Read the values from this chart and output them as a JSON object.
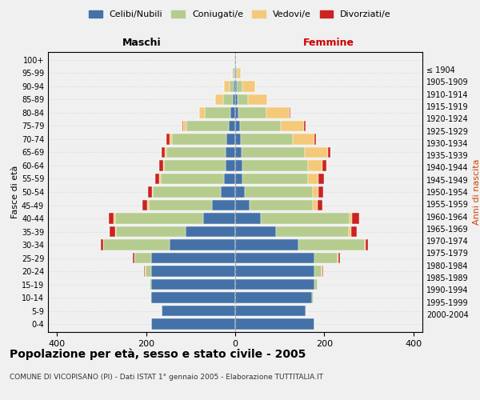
{
  "age_groups": [
    "100+",
    "95-99",
    "90-94",
    "85-89",
    "80-84",
    "75-79",
    "70-74",
    "65-69",
    "60-64",
    "55-59",
    "50-54",
    "45-49",
    "40-44",
    "35-39",
    "30-34",
    "25-29",
    "20-24",
    "15-19",
    "10-14",
    "5-9",
    "0-4"
  ],
  "birth_years": [
    "≤ 1904",
    "1905-1909",
    "1910-1914",
    "1915-1919",
    "1920-1924",
    "1925-1929",
    "1930-1934",
    "1935-1939",
    "1940-1944",
    "1945-1949",
    "1950-1954",
    "1955-1959",
    "1960-1964",
    "1965-1969",
    "1970-1974",
    "1975-1979",
    "1980-1984",
    "1985-1989",
    "1990-1994",
    "1995-1999",
    "2000-2004"
  ],
  "colors": {
    "celibi": "#4472a8",
    "coniugati": "#b5cc8e",
    "vedovi": "#f5c97a",
    "divorziati": "#cc2222"
  },
  "m_cel": [
    1,
    2,
    3,
    5,
    10,
    15,
    20,
    22,
    22,
    25,
    32,
    52,
    72,
    112,
    148,
    188,
    188,
    188,
    188,
    165,
    188
  ],
  "m_con": [
    0,
    3,
    10,
    22,
    58,
    95,
    122,
    132,
    137,
    142,
    152,
    142,
    198,
    155,
    148,
    38,
    13,
    4,
    3,
    1,
    0
  ],
  "m_ved": [
    0,
    3,
    12,
    18,
    12,
    6,
    6,
    4,
    3,
    3,
    3,
    3,
    2,
    2,
    1,
    1,
    1,
    0,
    0,
    0,
    0
  ],
  "m_div": [
    0,
    0,
    0,
    0,
    0,
    3,
    6,
    8,
    8,
    9,
    9,
    12,
    12,
    12,
    5,
    3,
    2,
    0,
    0,
    0,
    0
  ],
  "f_nub": [
    1,
    2,
    3,
    5,
    8,
    10,
    12,
    14,
    16,
    16,
    22,
    32,
    58,
    92,
    142,
    178,
    178,
    178,
    172,
    158,
    178
  ],
  "f_con": [
    0,
    4,
    14,
    24,
    62,
    92,
    118,
    142,
    148,
    148,
    152,
    142,
    198,
    162,
    148,
    52,
    16,
    6,
    3,
    2,
    0
  ],
  "f_ved": [
    0,
    6,
    28,
    42,
    52,
    52,
    48,
    52,
    32,
    22,
    12,
    10,
    6,
    6,
    2,
    2,
    1,
    0,
    0,
    0,
    0
  ],
  "f_div": [
    0,
    0,
    0,
    0,
    2,
    4,
    4,
    6,
    9,
    13,
    12,
    12,
    16,
    12,
    6,
    3,
    2,
    0,
    0,
    0,
    0
  ],
  "xlim": 420,
  "title": "Popolazione per età, sesso e stato civile - 2005",
  "subtitle": "COMUNE DI VICOPISANO (PI) - Dati ISTAT 1° gennaio 2005 - Elaborazione TUTTITALIA.IT",
  "xlabel_left": "Maschi",
  "xlabel_right": "Femmine",
  "ylabel_left": "Fasce di età",
  "ylabel_right": "Anni di nascita",
  "legend_labels": [
    "Celibi/Nubili",
    "Coniugati/e",
    "Vedovi/e",
    "Divorziati/e"
  ],
  "bg_color": "#f0f0f0"
}
